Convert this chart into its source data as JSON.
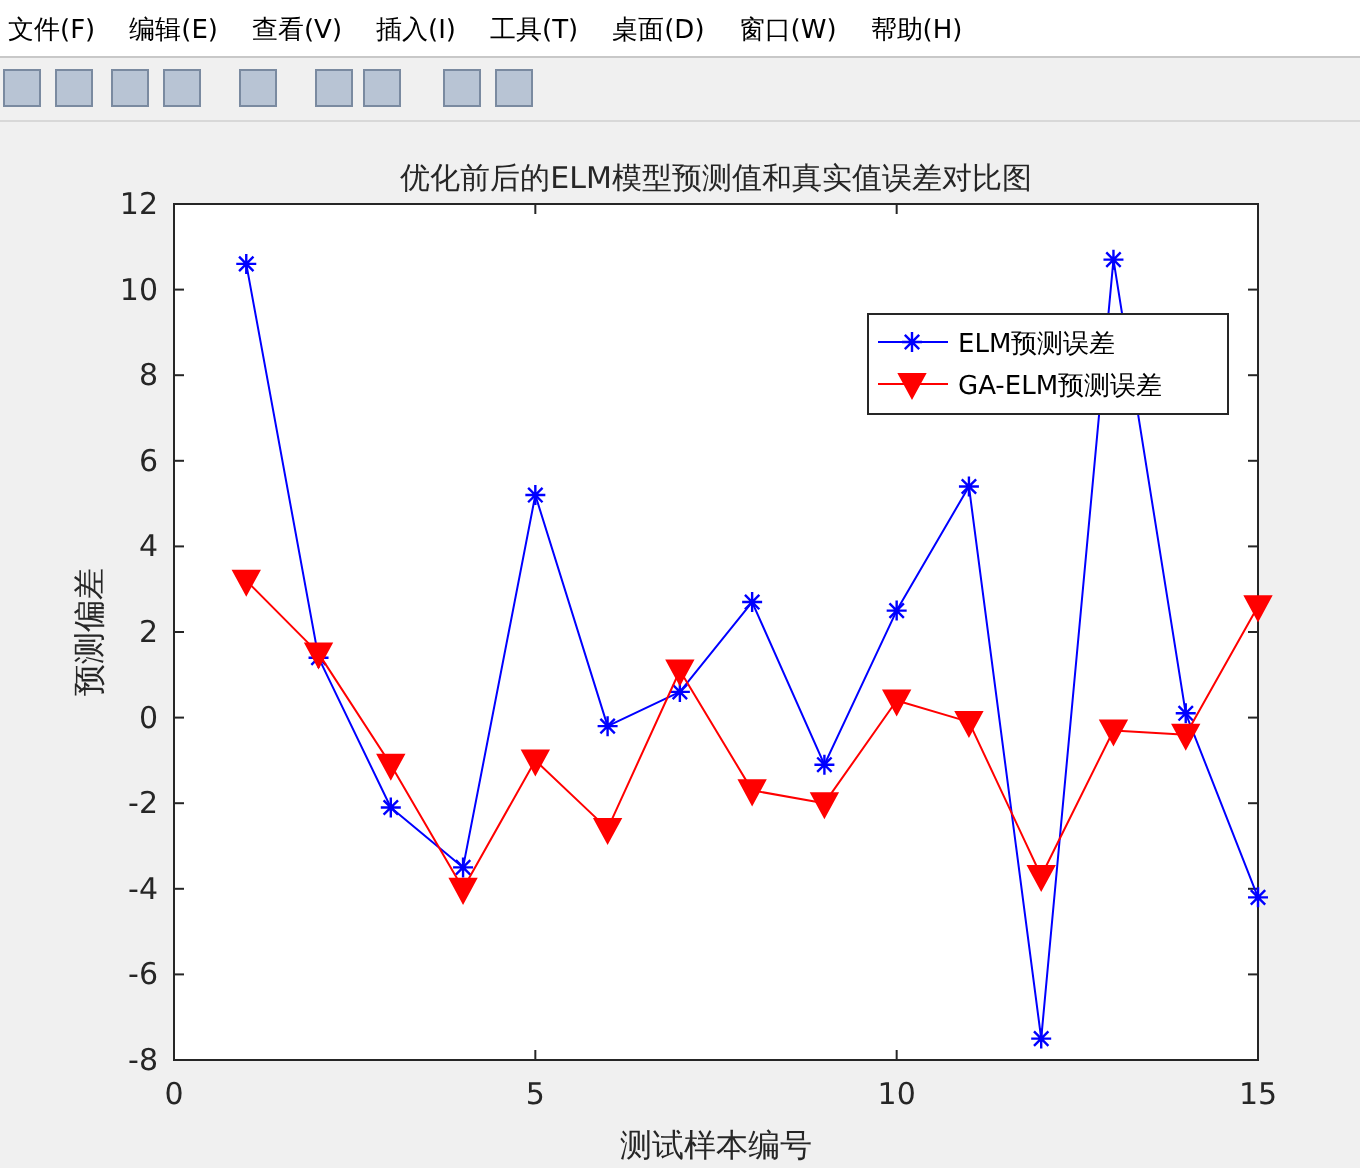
{
  "chart_data": {
    "type": "line",
    "title": "优化前后的ELM模型预测值和真实值误差对比图",
    "xlabel": "测试样本编号",
    "ylabel": "预测偏差",
    "annotations": [
      "文件(F)",
      "编辑(E)",
      "查看(V)",
      "插入(I)",
      "工具(T)",
      "桌面(D)",
      "窗口(W)",
      "帮助(H)"
    ],
    "x": [
      1,
      2,
      3,
      4,
      5,
      6,
      7,
      8,
      9,
      10,
      11,
      12,
      13,
      14,
      15
    ],
    "series": [
      {
        "name": "ELM预测误差",
        "color": "#0000ff",
        "marker": "cross",
        "values": [
          10.6,
          1.4,
          -2.1,
          -3.5,
          5.2,
          -0.2,
          0.6,
          2.7,
          -1.1,
          2.5,
          5.4,
          -7.5,
          10.7,
          0.1,
          -4.2
        ]
      },
      {
        "name": "GA-ELM预测误差",
        "color": "#ff0000",
        "marker": "triangle",
        "values": [
          3.2,
          1.5,
          -1.1,
          -4.0,
          -1.0,
          -2.6,
          1.1,
          -1.7,
          -2.0,
          0.4,
          -0.1,
          -3.7,
          -0.3,
          -0.4,
          2.6
        ]
      }
    ],
    "xlim": [
      0,
      15
    ],
    "xticks": [
      0,
      5,
      10,
      15
    ],
    "ylim": [
      -8,
      12
    ],
    "yticks": [
      -8,
      -6,
      -4,
      -2,
      0,
      2,
      4,
      6,
      8,
      10,
      12
    ],
    "grid": false,
    "legend": "top right",
    "line_style": "solid"
  }
}
